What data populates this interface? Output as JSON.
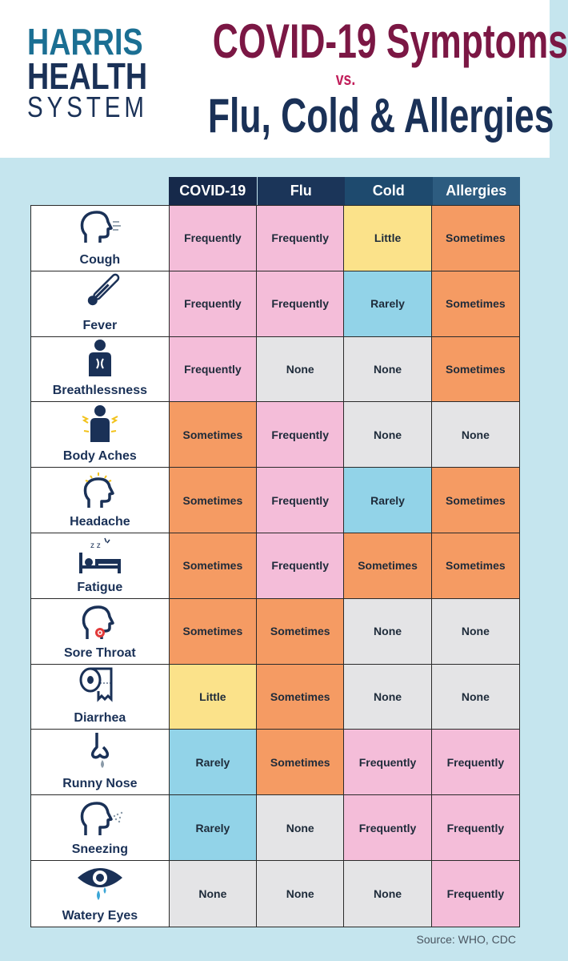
{
  "logo": {
    "line1": "HARRIS",
    "line2": "HEALTH",
    "line3": "SYSTEM"
  },
  "title": {
    "line1": "COVID-19 Symptoms",
    "vs": "vs.",
    "line2": "Flu, Cold & Allergies"
  },
  "columns": [
    {
      "label": "COVID-19",
      "color": "#16294a"
    },
    {
      "label": "Flu",
      "color": "#1b3559"
    },
    {
      "label": "Cold",
      "color": "#1e4a6e"
    },
    {
      "label": "Allergies",
      "color": "#2d5c80"
    }
  ],
  "value_colors": {
    "Frequently": "#f4bdd9",
    "Sometimes": "#f59b63",
    "Little": "#fbe28a",
    "Rarely": "#92d3e8",
    "None": "#e4e4e6"
  },
  "rows": [
    {
      "symptom": "Cough",
      "icon": "cough-icon",
      "values": [
        "Frequently",
        "Frequently",
        "Little",
        "Sometimes"
      ]
    },
    {
      "symptom": "Fever",
      "icon": "thermometer-icon",
      "values": [
        "Frequently",
        "Frequently",
        "Rarely",
        "Sometimes"
      ]
    },
    {
      "symptom": "Breathlessness",
      "icon": "breathless-person-icon",
      "values": [
        "Frequently",
        "None",
        "None",
        "Sometimes"
      ]
    },
    {
      "symptom": "Body Aches",
      "icon": "aching-body-icon",
      "values": [
        "Sometimes",
        "Frequently",
        "None",
        "None"
      ]
    },
    {
      "symptom": "Headache",
      "icon": "headache-icon",
      "values": [
        "Sometimes",
        "Frequently",
        "Rarely",
        "Sometimes"
      ]
    },
    {
      "symptom": "Fatigue",
      "icon": "bed-sleep-icon",
      "values": [
        "Sometimes",
        "Frequently",
        "Sometimes",
        "Sometimes"
      ]
    },
    {
      "symptom": "Sore Throat",
      "icon": "sore-throat-icon",
      "values": [
        "Sometimes",
        "Sometimes",
        "None",
        "None"
      ]
    },
    {
      "symptom": "Diarrhea",
      "icon": "toilet-paper-icon",
      "values": [
        "Little",
        "Sometimes",
        "None",
        "None"
      ]
    },
    {
      "symptom": "Runny Nose",
      "icon": "runny-nose-icon",
      "values": [
        "Rarely",
        "Sometimes",
        "Frequently",
        "Frequently"
      ]
    },
    {
      "symptom": "Sneezing",
      "icon": "sneezing-icon",
      "values": [
        "Rarely",
        "None",
        "Frequently",
        "Frequently"
      ]
    },
    {
      "symptom": "Watery Eyes",
      "icon": "watery-eye-icon",
      "values": [
        "None",
        "None",
        "None",
        "Frequently"
      ]
    }
  ],
  "source": "Source: WHO, CDC"
}
